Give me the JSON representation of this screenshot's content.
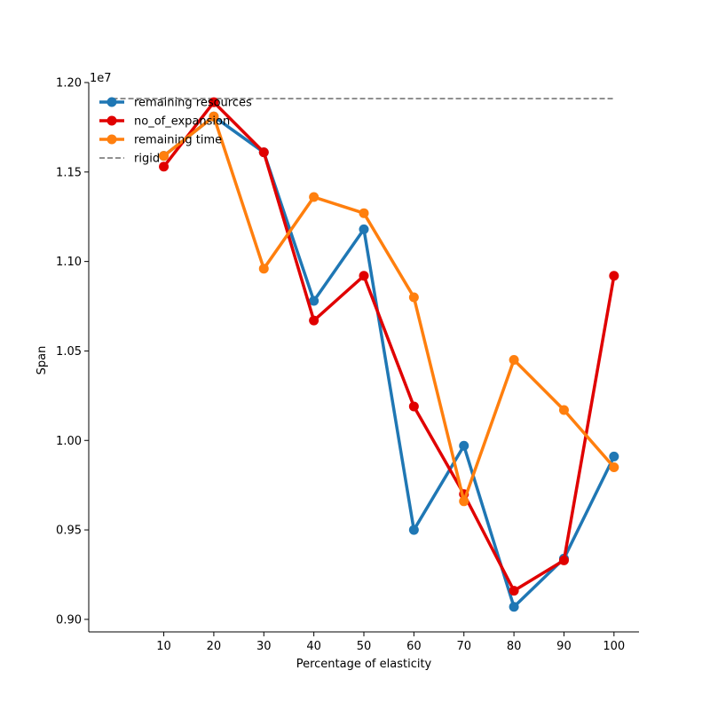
{
  "chart_data": {
    "type": "line",
    "title": "",
    "xlabel": "Percentage of elasticity",
    "ylabel": "Span",
    "y_exponent_label": "1e7",
    "x": [
      10,
      20,
      30,
      40,
      50,
      60,
      70,
      80,
      90,
      100
    ],
    "x_tick_labels": [
      "10",
      "20",
      "30",
      "40",
      "50",
      "60",
      "70",
      "80",
      "90",
      "100"
    ],
    "xlim": [
      -5,
      105
    ],
    "ylim": [
      0.893,
      1.2
    ],
    "y_ticks": [
      0.9,
      0.95,
      1.0,
      1.05,
      1.1,
      1.15,
      1.2
    ],
    "y_tick_labels": [
      "0.90",
      "0.95",
      "1.00",
      "1.05",
      "1.10",
      "1.15",
      "1.20"
    ],
    "value_scale": 10000000,
    "grid": false,
    "legend_position": "top-left",
    "series": [
      {
        "name": "remaining resources",
        "color": "#1f77b4",
        "style": "solid",
        "marker": "circle",
        "values": [
          1.159,
          1.181,
          1.161,
          1.078,
          1.118,
          0.95,
          0.997,
          0.907,
          0.934,
          0.991
        ]
      },
      {
        "name": "no_of_expansion",
        "color": "#e00000",
        "style": "solid",
        "marker": "circle",
        "values": [
          1.153,
          1.189,
          1.161,
          1.067,
          1.092,
          1.019,
          0.97,
          0.916,
          0.933,
          1.092
        ]
      },
      {
        "name": "remaining time",
        "color": "#ff7f0e",
        "style": "solid",
        "marker": "circle",
        "values": [
          1.159,
          1.181,
          1.096,
          1.136,
          1.127,
          1.08,
          0.966,
          1.045,
          1.017,
          0.985
        ]
      }
    ],
    "reference_lines": [
      {
        "name": "rigid",
        "color": "#808080",
        "style": "dashed",
        "value": 1.191,
        "x_range": [
          10,
          100
        ]
      }
    ]
  }
}
